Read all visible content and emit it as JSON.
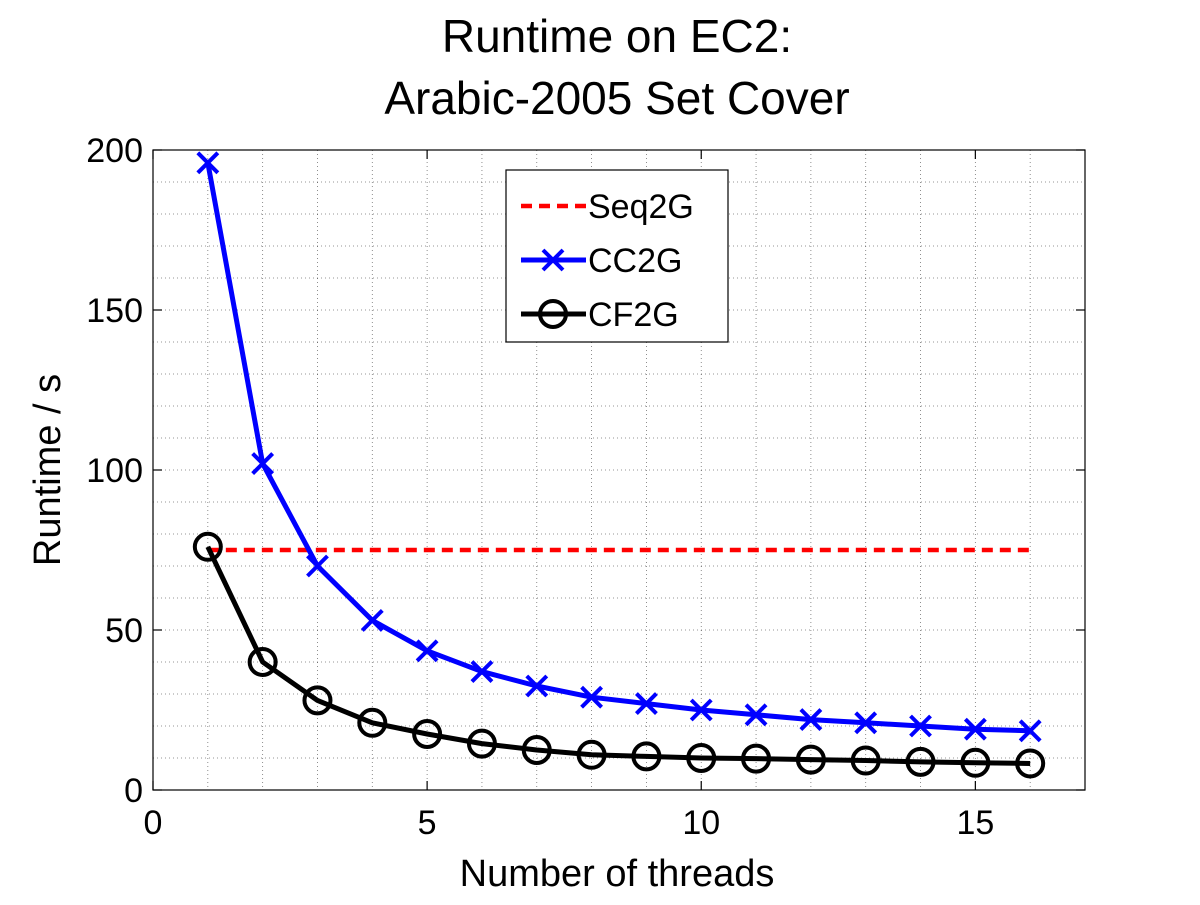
{
  "chart_data": {
    "type": "line",
    "title": [
      "Runtime on EC2:",
      "Arabic-2005 Set Cover"
    ],
    "xlabel": "Number of threads",
    "ylabel": "Runtime / s",
    "xlim": [
      0,
      17
    ],
    "ylim": [
      0,
      200
    ],
    "xticks": [
      0,
      5,
      10,
      15
    ],
    "yticks": [
      0,
      50,
      100,
      150,
      200
    ],
    "grid": true,
    "legend_position": "top-center",
    "series": [
      {
        "name": "Seq2G",
        "color": "#ff0000",
        "style": "dashed",
        "marker": "none",
        "x": [
          1,
          16
        ],
        "values": [
          75,
          75
        ]
      },
      {
        "name": "CC2G",
        "color": "#0000ff",
        "style": "solid",
        "marker": "x",
        "x": [
          1,
          2,
          3,
          4,
          5,
          6,
          7,
          8,
          9,
          10,
          11,
          12,
          13,
          14,
          15,
          16
        ],
        "values": [
          196,
          102,
          70,
          53,
          43.5,
          37,
          32.5,
          29,
          27,
          25,
          23.5,
          22,
          21,
          20,
          19,
          18.5
        ]
      },
      {
        "name": "CF2G",
        "color": "#000000",
        "style": "solid",
        "marker": "circle",
        "x": [
          1,
          2,
          3,
          4,
          5,
          6,
          7,
          8,
          9,
          10,
          11,
          12,
          13,
          14,
          15,
          16
        ],
        "values": [
          76,
          40,
          28,
          21,
          17.5,
          14.5,
          12.5,
          11,
          10.5,
          10,
          9.8,
          9.5,
          9.2,
          8.8,
          8.5,
          8.3
        ]
      }
    ]
  }
}
